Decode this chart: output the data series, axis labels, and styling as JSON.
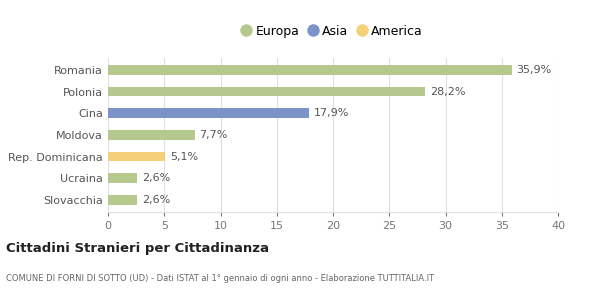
{
  "categories": [
    "Romania",
    "Polonia",
    "Cina",
    "Moldova",
    "Rep. Dominicana",
    "Ucraina",
    "Slovacchia"
  ],
  "values": [
    35.9,
    28.2,
    17.9,
    7.7,
    5.1,
    2.6,
    2.6
  ],
  "labels": [
    "35,9%",
    "28,2%",
    "17,9%",
    "7,7%",
    "5,1%",
    "2,6%",
    "2,6%"
  ],
  "colors": [
    "#b5c98e",
    "#b5c98e",
    "#7b93c8",
    "#b5c98e",
    "#f5d07a",
    "#b5c98e",
    "#b5c98e"
  ],
  "legend": [
    {
      "label": "Europa",
      "color": "#b5c98e"
    },
    {
      "label": "Asia",
      "color": "#7b93c8"
    },
    {
      "label": "America",
      "color": "#f5d07a"
    }
  ],
  "xlim": [
    0,
    40
  ],
  "xticks": [
    0,
    5,
    10,
    15,
    20,
    25,
    30,
    35,
    40
  ],
  "title": "Cittadini Stranieri per Cittadinanza",
  "subtitle": "COMUNE DI FORNI DI SOTTO (UD) - Dati ISTAT al 1° gennaio di ogni anno - Elaborazione TUTTITALIA.IT",
  "bg_color": "#ffffff",
  "grid_color": "#e0e0e0",
  "bar_height": 0.45,
  "label_fontsize": 8,
  "ytick_fontsize": 8,
  "xtick_fontsize": 8
}
